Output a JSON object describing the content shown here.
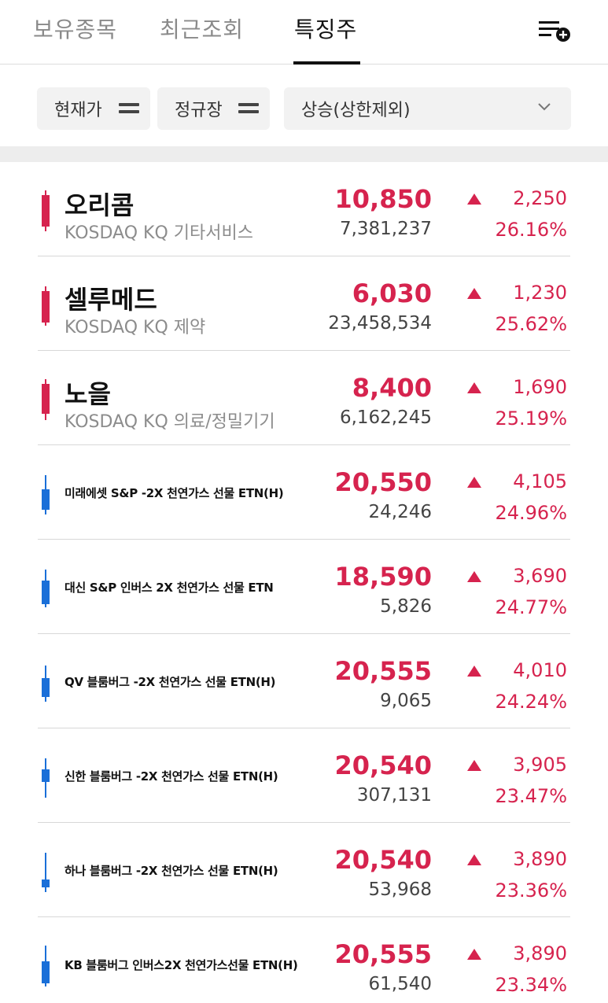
{
  "tabs": [
    {
      "label": "보유종목"
    },
    {
      "label": "최근조회"
    },
    {
      "label": "특징주"
    }
  ],
  "active_tab": "특징주",
  "filters": {
    "price_label": "현재가",
    "session_label": "정규장",
    "condition_selected": "상승(상한제외)"
  },
  "colors": {
    "up": "#d6234e",
    "down": "#1a6fd8"
  },
  "stocks": [
    {
      "name": "오리콤",
      "market": "KOSDAQ KQ 기타서비스",
      "price": "10,850",
      "volume": "7,381,237",
      "change": "2,250",
      "rate": "26.16%",
      "candle": "red"
    },
    {
      "name": "셀루메드",
      "market": "KOSDAQ KQ 제약",
      "price": "6,030",
      "volume": "23,458,534",
      "change": "1,230",
      "rate": "25.62%",
      "candle": "red"
    },
    {
      "name": "노을",
      "market": "KOSDAQ KQ 의료/정밀기기",
      "price": "8,400",
      "volume": "6,162,245",
      "change": "1,690",
      "rate": "25.19%",
      "candle": "red"
    },
    {
      "name": "미래에셋 S&P -2X 천연가스 선물 ETN(H)",
      "price": "20,550",
      "volume": "24,246",
      "change": "4,105",
      "rate": "24.96%",
      "candle": "blue"
    },
    {
      "name": "대신 S&P 인버스 2X 천연가스 선물 ETN",
      "price": "18,590",
      "volume": "5,826",
      "change": "3,690",
      "rate": "24.77%",
      "candle": "blue"
    },
    {
      "name": "QV 블룸버그 -2X 천연가스 선물 ETN(H)",
      "price": "20,555",
      "volume": "9,065",
      "change": "4,010",
      "rate": "24.24%",
      "candle": "blue"
    },
    {
      "name": "신한 블룸버그 -2X 천연가스 선물 ETN(H)",
      "price": "20,540",
      "volume": "307,131",
      "change": "3,905",
      "rate": "23.47%",
      "candle": "blue"
    },
    {
      "name": "하나 블룸버그 -2X 천연가스 선물 ETN(H)",
      "price": "20,540",
      "volume": "53,968",
      "change": "3,890",
      "rate": "23.36%",
      "candle": "blue"
    },
    {
      "name": "KB 블룸버그 인버스2X 천연가스선물 ETN(H)",
      "price": "20,555",
      "volume": "61,540",
      "change": "3,890",
      "rate": "23.34%",
      "candle": "blue"
    }
  ]
}
